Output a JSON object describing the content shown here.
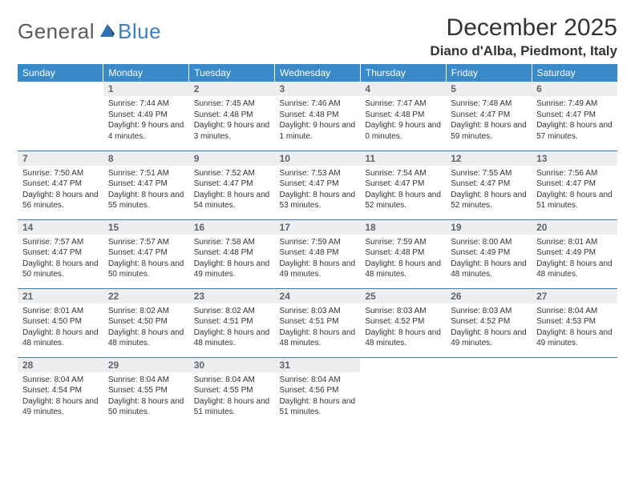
{
  "logo": {
    "general": "General",
    "blue": "Blue",
    "icon_color": "#2f72b4"
  },
  "title": "December 2025",
  "location": "Diano d'Alba, Piedmont, Italy",
  "header_bg": "#3a89c9",
  "daynum_bg": "#eceef0",
  "border_color": "#3a7fb0",
  "weekdays": [
    "Sunday",
    "Monday",
    "Tuesday",
    "Wednesday",
    "Thursday",
    "Friday",
    "Saturday"
  ],
  "weeks": [
    [
      null,
      {
        "n": "1",
        "sr": "7:44 AM",
        "ss": "4:49 PM",
        "dl": "9 hours and 4 minutes."
      },
      {
        "n": "2",
        "sr": "7:45 AM",
        "ss": "4:48 PM",
        "dl": "9 hours and 3 minutes."
      },
      {
        "n": "3",
        "sr": "7:46 AM",
        "ss": "4:48 PM",
        "dl": "9 hours and 1 minute."
      },
      {
        "n": "4",
        "sr": "7:47 AM",
        "ss": "4:48 PM",
        "dl": "9 hours and 0 minutes."
      },
      {
        "n": "5",
        "sr": "7:48 AM",
        "ss": "4:47 PM",
        "dl": "8 hours and 59 minutes."
      },
      {
        "n": "6",
        "sr": "7:49 AM",
        "ss": "4:47 PM",
        "dl": "8 hours and 57 minutes."
      }
    ],
    [
      {
        "n": "7",
        "sr": "7:50 AM",
        "ss": "4:47 PM",
        "dl": "8 hours and 56 minutes."
      },
      {
        "n": "8",
        "sr": "7:51 AM",
        "ss": "4:47 PM",
        "dl": "8 hours and 55 minutes."
      },
      {
        "n": "9",
        "sr": "7:52 AM",
        "ss": "4:47 PM",
        "dl": "8 hours and 54 minutes."
      },
      {
        "n": "10",
        "sr": "7:53 AM",
        "ss": "4:47 PM",
        "dl": "8 hours and 53 minutes."
      },
      {
        "n": "11",
        "sr": "7:54 AM",
        "ss": "4:47 PM",
        "dl": "8 hours and 52 minutes."
      },
      {
        "n": "12",
        "sr": "7:55 AM",
        "ss": "4:47 PM",
        "dl": "8 hours and 52 minutes."
      },
      {
        "n": "13",
        "sr": "7:56 AM",
        "ss": "4:47 PM",
        "dl": "8 hours and 51 minutes."
      }
    ],
    [
      {
        "n": "14",
        "sr": "7:57 AM",
        "ss": "4:47 PM",
        "dl": "8 hours and 50 minutes."
      },
      {
        "n": "15",
        "sr": "7:57 AM",
        "ss": "4:47 PM",
        "dl": "8 hours and 50 minutes."
      },
      {
        "n": "16",
        "sr": "7:58 AM",
        "ss": "4:48 PM",
        "dl": "8 hours and 49 minutes."
      },
      {
        "n": "17",
        "sr": "7:59 AM",
        "ss": "4:48 PM",
        "dl": "8 hours and 49 minutes."
      },
      {
        "n": "18",
        "sr": "7:59 AM",
        "ss": "4:48 PM",
        "dl": "8 hours and 48 minutes."
      },
      {
        "n": "19",
        "sr": "8:00 AM",
        "ss": "4:49 PM",
        "dl": "8 hours and 48 minutes."
      },
      {
        "n": "20",
        "sr": "8:01 AM",
        "ss": "4:49 PM",
        "dl": "8 hours and 48 minutes."
      }
    ],
    [
      {
        "n": "21",
        "sr": "8:01 AM",
        "ss": "4:50 PM",
        "dl": "8 hours and 48 minutes."
      },
      {
        "n": "22",
        "sr": "8:02 AM",
        "ss": "4:50 PM",
        "dl": "8 hours and 48 minutes."
      },
      {
        "n": "23",
        "sr": "8:02 AM",
        "ss": "4:51 PM",
        "dl": "8 hours and 48 minutes."
      },
      {
        "n": "24",
        "sr": "8:03 AM",
        "ss": "4:51 PM",
        "dl": "8 hours and 48 minutes."
      },
      {
        "n": "25",
        "sr": "8:03 AM",
        "ss": "4:52 PM",
        "dl": "8 hours and 48 minutes."
      },
      {
        "n": "26",
        "sr": "8:03 AM",
        "ss": "4:52 PM",
        "dl": "8 hours and 49 minutes."
      },
      {
        "n": "27",
        "sr": "8:04 AM",
        "ss": "4:53 PM",
        "dl": "8 hours and 49 minutes."
      }
    ],
    [
      {
        "n": "28",
        "sr": "8:04 AM",
        "ss": "4:54 PM",
        "dl": "8 hours and 49 minutes."
      },
      {
        "n": "29",
        "sr": "8:04 AM",
        "ss": "4:55 PM",
        "dl": "8 hours and 50 minutes."
      },
      {
        "n": "30",
        "sr": "8:04 AM",
        "ss": "4:55 PM",
        "dl": "8 hours and 51 minutes."
      },
      {
        "n": "31",
        "sr": "8:04 AM",
        "ss": "4:56 PM",
        "dl": "8 hours and 51 minutes."
      },
      null,
      null,
      null
    ]
  ],
  "labels": {
    "sunrise": "Sunrise:",
    "sunset": "Sunset:",
    "daylight": "Daylight:"
  }
}
